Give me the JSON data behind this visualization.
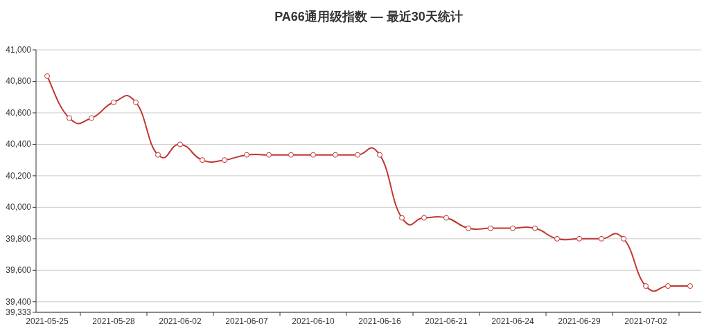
{
  "chart_data": {
    "type": "line",
    "title": "PA66通用级指数 — 最近30天统计",
    "categories": [
      "2021-05-25",
      null,
      null,
      "2021-05-28",
      null,
      null,
      "2021-06-02",
      null,
      null,
      "2021-06-07",
      null,
      null,
      "2021-06-10",
      null,
      null,
      "2021-06-16",
      null,
      null,
      "2021-06-21",
      null,
      null,
      "2021-06-24",
      null,
      null,
      "2021-06-29",
      null,
      null,
      "2021-07-02",
      null,
      null
    ],
    "values": [
      40833,
      40567,
      40567,
      40667,
      40667,
      40333,
      40400,
      40300,
      40300,
      40333,
      40333,
      40333,
      40333,
      40333,
      40333,
      40333,
      39933,
      39933,
      39933,
      39867,
      39867,
      39867,
      39867,
      39800,
      39800,
      39800,
      39800,
      39500,
      39500,
      39500
    ],
    "color": "#c23531",
    "ylim": [
      39333,
      41000
    ],
    "yticks": [
      {
        "value": 39333,
        "label": "39,333"
      },
      {
        "value": 39400,
        "label": "39,400"
      },
      {
        "value": 39600,
        "label": "39,600"
      },
      {
        "value": 39800,
        "label": "39,800"
      },
      {
        "value": 40000,
        "label": "40,000"
      },
      {
        "value": 40200,
        "label": "40,200"
      },
      {
        "value": 40400,
        "label": "40,400"
      },
      {
        "value": 40600,
        "label": "40,600"
      },
      {
        "value": 40800,
        "label": "40,800"
      },
      {
        "value": 41000,
        "label": "41,000"
      }
    ],
    "grid": "y",
    "marker": "circle",
    "line_style": "solid"
  }
}
